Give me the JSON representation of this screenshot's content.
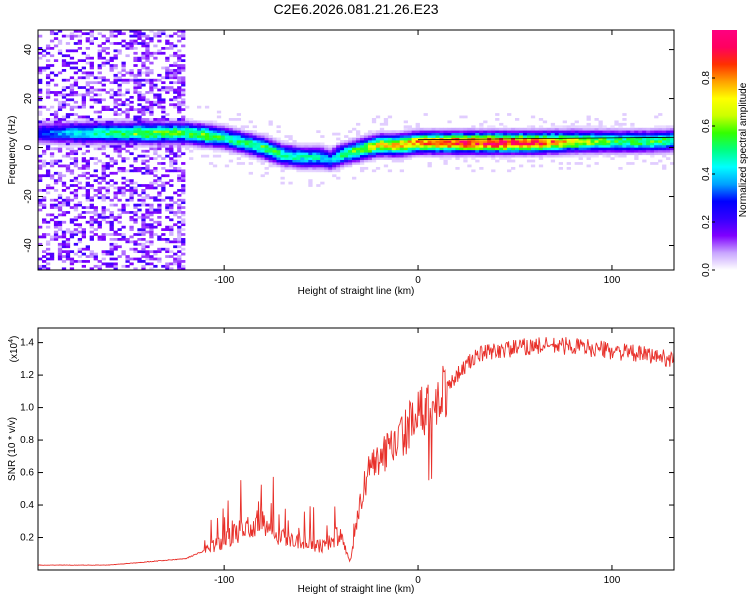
{
  "figure_title": "C2E6.2026.081.21.26.E23",
  "colors": {
    "line": "#e8302a",
    "axis": "#000000",
    "colorbar": [
      "#ffffff",
      "#c9a6ff",
      "#7f00ff",
      "#3300ff",
      "#0000ff",
      "#00a0ff",
      "#00ffff",
      "#00ff80",
      "#33ff00",
      "#ccff00",
      "#ffff00",
      "#ffa000",
      "#ff3000",
      "#ff0060",
      "#ff0080"
    ]
  },
  "chart_data": [
    {
      "type": "heatmap",
      "name": "spectrogram",
      "xlabel": "Height of straight line (km)",
      "ylabel": "Frequency (Hz)",
      "xlim": [
        -196,
        132
      ],
      "ylim": [
        -50,
        48
      ],
      "xticks": [
        -100,
        0,
        100
      ],
      "yticks": [
        -40,
        -20,
        0,
        20,
        40
      ],
      "colorbar": {
        "label": "Normalized spectral amplitude",
        "range": [
          0,
          1
        ],
        "ticks": [
          0.0,
          0.2,
          0.4,
          0.6,
          0.8
        ]
      },
      "ridge": {
        "x": [
          -196,
          -160,
          -140,
          -120,
          -110,
          -100,
          -90,
          -80,
          -70,
          -60,
          -50,
          -45,
          -40,
          -30,
          -20,
          -10,
          0,
          10,
          20,
          40,
          60,
          80,
          100,
          120,
          132
        ],
        "frequency": [
          6,
          6,
          6,
          6,
          5,
          4,
          2,
          0,
          -3,
          -4,
          -4,
          -5,
          -3,
          -1,
          1,
          1,
          2,
          2,
          2,
          2,
          2,
          2.5,
          2.5,
          2.5,
          3
        ],
        "amplitude": [
          0.3,
          0.5,
          0.6,
          0.55,
          0.6,
          0.5,
          0.5,
          0.55,
          0.5,
          0.45,
          0.45,
          0.35,
          0.5,
          0.6,
          0.7,
          0.75,
          0.8,
          0.85,
          0.9,
          0.95,
          0.9,
          0.7,
          0.55,
          0.55,
          0.5
        ]
      },
      "noise_region_x": [
        -196,
        -120
      ]
    },
    {
      "type": "line",
      "name": "snr",
      "xlabel": "Height of straight line (km)",
      "ylabel": "SNR (10 * v/v)",
      "yscale_label": "(x10",
      "yscale_exponent": "4",
      "xlim": [
        -196,
        132
      ],
      "ylim": [
        0,
        14900
      ],
      "xticks": [
        -100,
        0,
        100
      ],
      "yticks": [
        2000,
        4000,
        6000,
        8000,
        10000,
        12000,
        14000
      ],
      "ytick_labels": [
        "0.2",
        "0.4",
        "0.6",
        "0.8",
        "1.0",
        "1.2",
        "1.4"
      ],
      "envelope": {
        "x": [
          -196,
          -160,
          -140,
          -120,
          -110,
          -100,
          -90,
          -80,
          -70,
          -60,
          -50,
          -40,
          -35,
          -30,
          -25,
          -20,
          -10,
          0,
          10,
          20,
          30,
          40,
          60,
          80,
          100,
          120,
          132
        ],
        "y": [
          300,
          300,
          500,
          700,
          1200,
          1800,
          2500,
          3000,
          2000,
          1800,
          1500,
          2200,
          500,
          4000,
          6500,
          6800,
          8000,
          9500,
          10500,
          12000,
          13200,
          13500,
          13800,
          13800,
          13500,
          13200,
          13000
        ]
      }
    }
  ]
}
